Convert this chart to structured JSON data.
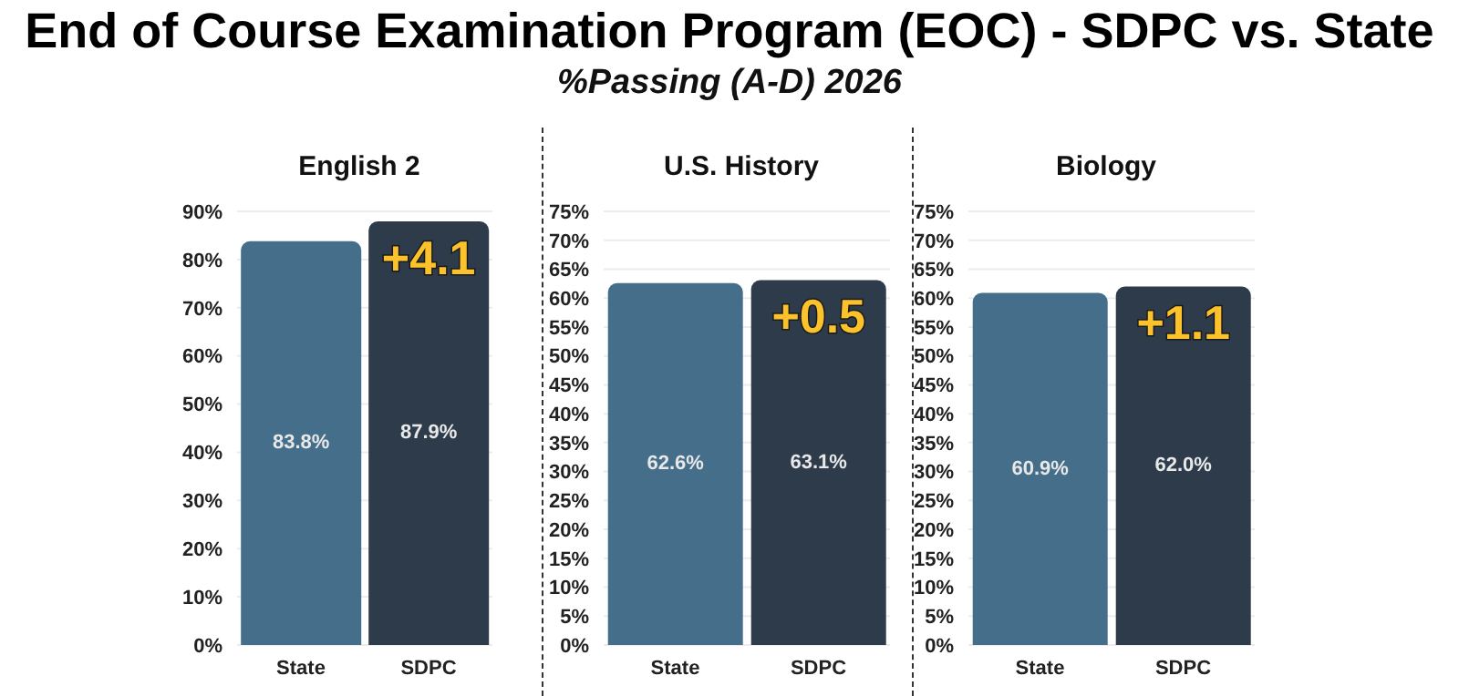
{
  "chart_data": [
    {
      "type": "other",
      "title": "End of Course Examination Program (EOC) - SDPC vs. State",
      "subtitle": "%Passing (A-D) 2026"
    },
    {
      "type": "bar",
      "title": "English 2",
      "categories": [
        "State",
        "SDPC"
      ],
      "colors": [
        "#446e8a",
        "#2d3b4b"
      ],
      "values": [
        83.8,
        87.9
      ],
      "value_labels": [
        "83.8%",
        "87.9%"
      ],
      "ylim": [
        0,
        90
      ],
      "yticks": [
        {
          "value": 0,
          "label": "0%"
        },
        {
          "value": 10,
          "label": "10%"
        },
        {
          "value": 20,
          "label": "20%"
        },
        {
          "value": 30,
          "label": "30%"
        },
        {
          "value": 40,
          "label": "40%"
        },
        {
          "value": 50,
          "label": "50%"
        },
        {
          "value": 60,
          "label": "60%"
        },
        {
          "value": 70,
          "label": "70%"
        },
        {
          "value": 80,
          "label": "80%"
        },
        {
          "value": 90,
          "label": "90%"
        }
      ],
      "grid": "y",
      "annotations": [
        "+4.1"
      ]
    },
    {
      "type": "bar",
      "title": "U.S. History",
      "categories": [
        "State",
        "SDPC"
      ],
      "colors": [
        "#446e8a",
        "#2d3b4b"
      ],
      "values": [
        62.6,
        63.1
      ],
      "value_labels": [
        "62.6%",
        "63.1%"
      ],
      "ylim": [
        0,
        75
      ],
      "yticks": [
        {
          "value": 0,
          "label": "0%"
        },
        {
          "value": 5,
          "label": "5%"
        },
        {
          "value": 10,
          "label": "10%"
        },
        {
          "value": 15,
          "label": "15%"
        },
        {
          "value": 20,
          "label": "20%"
        },
        {
          "value": 25,
          "label": "25%"
        },
        {
          "value": 30,
          "label": "30%"
        },
        {
          "value": 35,
          "label": "35%"
        },
        {
          "value": 40,
          "label": "40%"
        },
        {
          "value": 45,
          "label": "45%"
        },
        {
          "value": 50,
          "label": "50%"
        },
        {
          "value": 55,
          "label": "55%"
        },
        {
          "value": 60,
          "label": "60%"
        },
        {
          "value": 65,
          "label": "65%"
        },
        {
          "value": 70,
          "label": "70%"
        },
        {
          "value": 75,
          "label": "75%"
        }
      ],
      "grid": "y",
      "annotations": [
        "+0.5"
      ]
    },
    {
      "type": "bar",
      "title": "Biology",
      "categories": [
        "State",
        "SDPC"
      ],
      "colors": [
        "#446e8a",
        "#2d3b4b"
      ],
      "values": [
        60.9,
        62.0
      ],
      "value_labels": [
        "60.9%",
        "62.0%"
      ],
      "ylim": [
        0,
        75
      ],
      "yticks": [
        {
          "value": 0,
          "label": "0%"
        },
        {
          "value": 5,
          "label": "5%"
        },
        {
          "value": 10,
          "label": "10%"
        },
        {
          "value": 15,
          "label": "15%"
        },
        {
          "value": 20,
          "label": "20%"
        },
        {
          "value": 25,
          "label": "25%"
        },
        {
          "value": 30,
          "label": "30%"
        },
        {
          "value": 35,
          "label": "35%"
        },
        {
          "value": 40,
          "label": "40%"
        },
        {
          "value": 45,
          "label": "45%"
        },
        {
          "value": 50,
          "label": "50%"
        },
        {
          "value": 55,
          "label": "55%"
        },
        {
          "value": 60,
          "label": "60%"
        },
        {
          "value": 65,
          "label": "65%"
        },
        {
          "value": 70,
          "label": "70%"
        },
        {
          "value": 75,
          "label": "75%"
        }
      ],
      "grid": "y",
      "annotations": [
        "+1.1"
      ]
    }
  ]
}
